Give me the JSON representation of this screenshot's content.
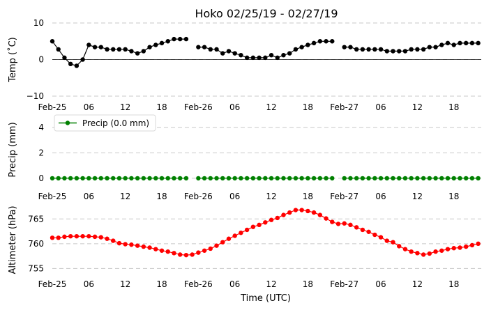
{
  "title": "Hoko 02/25/19 - 02/27/19",
  "xlabel": "Time (UTC)",
  "x_tick_labels": [
    "Feb-25",
    "06",
    "12",
    "18",
    "Feb-26",
    "06",
    "12",
    "18",
    "Feb-27",
    "06",
    "12",
    "18"
  ],
  "x_tick_hours": [
    0,
    6,
    12,
    18,
    24,
    30,
    36,
    42,
    48,
    54,
    60,
    66
  ],
  "x_range_hours": [
    0,
    70.5
  ],
  "chart_data": [
    {
      "type": "line",
      "name": "temperature",
      "ylabel": "Temp ($^\\circ$C)",
      "ylabel_display": "Temp (˚C)",
      "ylim": [
        -10,
        10
      ],
      "yticks": [
        10,
        0,
        -10
      ],
      "ytick_labels": [
        "10",
        "0",
        "−10"
      ],
      "zero_line": true,
      "color": "#000000",
      "x_hours": [
        0,
        1,
        2,
        3,
        4,
        5,
        6,
        7,
        8,
        9,
        10,
        11,
        12,
        13,
        14,
        15,
        16,
        17,
        18,
        19,
        20,
        21,
        22,
        23,
        24,
        25,
        26,
        27,
        28,
        29,
        30,
        31,
        32,
        33,
        34,
        35,
        36,
        37,
        38,
        39,
        40,
        41,
        42,
        43,
        44,
        45,
        46,
        47,
        48,
        49,
        50,
        51,
        52,
        53,
        54,
        55,
        56,
        57,
        58,
        59,
        60,
        61,
        62,
        63,
        64,
        65,
        66,
        67,
        68,
        69,
        70
      ],
      "values": [
        5.0,
        2.8,
        0.5,
        -1.2,
        -1.7,
        0.0,
        4.0,
        3.4,
        3.4,
        2.8,
        2.8,
        2.8,
        2.8,
        2.3,
        1.7,
        2.3,
        3.4,
        4.0,
        4.5,
        5.0,
        5.6,
        5.6,
        5.6,
        null,
        3.4,
        3.4,
        2.8,
        2.8,
        1.7,
        2.3,
        1.7,
        1.2,
        0.5,
        0.5,
        0.5,
        0.5,
        1.2,
        0.5,
        1.2,
        1.7,
        2.8,
        3.4,
        4.0,
        4.5,
        5.0,
        5.0,
        5.0,
        null,
        3.4,
        3.4,
        2.8,
        2.8,
        2.8,
        2.8,
        2.8,
        2.3,
        2.3,
        2.3,
        2.3,
        2.8,
        2.8,
        2.8,
        3.4,
        3.4,
        4.0,
        4.5,
        4.0,
        4.5,
        4.5,
        4.5,
        4.5
      ]
    },
    {
      "type": "line",
      "name": "precipitation",
      "ylabel": "Precip (mm)",
      "ylim": [
        -0.5,
        5
      ],
      "yticks": [
        4,
        2,
        0
      ],
      "ytick_labels": [
        "4",
        "2",
        "0"
      ],
      "legend": "Precip (0.0 mm)",
      "legend_position": "top-left",
      "color": "#008000",
      "x_hours": [
        0,
        1,
        2,
        3,
        4,
        5,
        6,
        7,
        8,
        9,
        10,
        11,
        12,
        13,
        14,
        15,
        16,
        17,
        18,
        19,
        20,
        21,
        22,
        23,
        24,
        25,
        26,
        27,
        28,
        29,
        30,
        31,
        32,
        33,
        34,
        35,
        36,
        37,
        38,
        39,
        40,
        41,
        42,
        43,
        44,
        45,
        46,
        47,
        48,
        49,
        50,
        51,
        52,
        53,
        54,
        55,
        56,
        57,
        58,
        59,
        60,
        61,
        62,
        63,
        64,
        65,
        66,
        67,
        68,
        69,
        70
      ],
      "values": [
        0,
        0,
        0,
        0,
        0,
        0,
        0,
        0,
        0,
        0,
        0,
        0,
        0,
        0,
        0,
        0,
        0,
        0,
        0,
        0,
        0,
        0,
        0,
        null,
        0,
        0,
        0,
        0,
        0,
        0,
        0,
        0,
        0,
        0,
        0,
        0,
        0,
        0,
        0,
        0,
        0,
        0,
        0,
        0,
        0,
        0,
        0,
        null,
        0,
        0,
        0,
        0,
        0,
        0,
        0,
        0,
        0,
        0,
        0,
        0,
        0,
        0,
        0,
        0,
        0,
        0,
        0,
        0,
        0,
        0,
        0
      ]
    },
    {
      "type": "line",
      "name": "altimeter",
      "ylabel": "Altimeter (hPa)",
      "ylim": [
        753.5,
        768
      ],
      "yticks": [
        765,
        760,
        755
      ],
      "ytick_labels": [
        "765",
        "760",
        "755"
      ],
      "color": "#ff0000",
      "x_hours": [
        0,
        1,
        2,
        3,
        4,
        5,
        6,
        7,
        8,
        9,
        10,
        11,
        12,
        13,
        14,
        15,
        16,
        17,
        18,
        19,
        20,
        21,
        22,
        23,
        24,
        25,
        26,
        27,
        28,
        29,
        30,
        31,
        32,
        33,
        34,
        35,
        36,
        37,
        38,
        39,
        40,
        41,
        42,
        43,
        44,
        45,
        46,
        47,
        48,
        49,
        50,
        51,
        52,
        53,
        54,
        55,
        56,
        57,
        58,
        59,
        60,
        61,
        62,
        63,
        64,
        65,
        66,
        67,
        68,
        69,
        70
      ],
      "values": [
        761.2,
        761.2,
        761.4,
        761.5,
        761.5,
        761.5,
        761.5,
        761.4,
        761.3,
        761.0,
        760.6,
        760.1,
        759.9,
        759.8,
        759.6,
        759.4,
        759.2,
        758.9,
        758.6,
        758.4,
        758.1,
        757.8,
        757.7,
        757.8,
        758.2,
        758.6,
        759.0,
        759.6,
        760.3,
        761.0,
        761.6,
        762.2,
        762.8,
        763.4,
        763.8,
        764.3,
        764.8,
        765.2,
        765.8,
        766.3,
        766.8,
        766.8,
        766.6,
        766.3,
        765.8,
        765.1,
        764.4,
        764.0,
        764.1,
        763.8,
        763.3,
        762.8,
        762.4,
        761.8,
        761.3,
        760.6,
        760.3,
        759.5,
        758.9,
        758.4,
        758.1,
        757.8,
        758.0,
        758.4,
        758.6,
        758.9,
        759.1,
        759.2,
        759.4,
        759.7,
        760.0
      ]
    }
  ]
}
